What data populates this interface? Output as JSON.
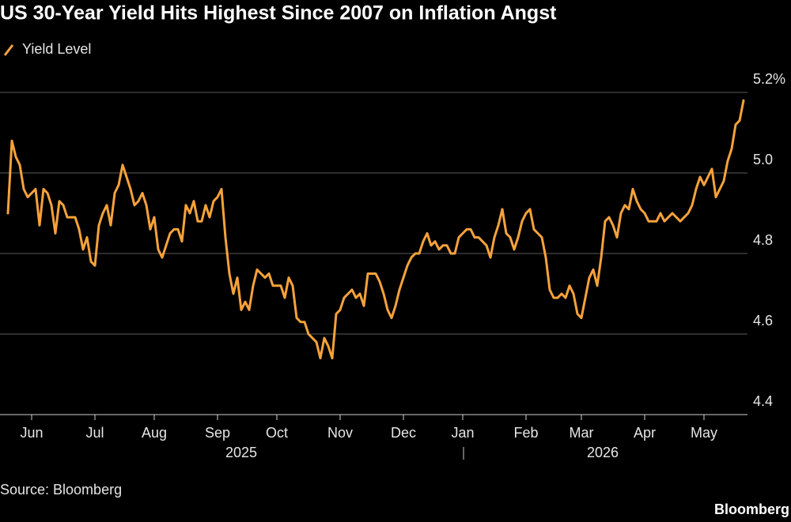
{
  "chart_data": {
    "type": "line",
    "title": "US 30-Year Yield Hits Highest Since 2007 on Inflation Angst",
    "categories": [
      null,
      null,
      null,
      null,
      null,
      null,
      "Jun",
      null,
      null,
      null,
      null,
      null,
      null,
      null,
      null,
      null,
      null,
      null,
      null,
      null,
      null,
      null,
      "Jul",
      null,
      null,
      null,
      null,
      null,
      null,
      null,
      null,
      null,
      null,
      null,
      null,
      null,
      null,
      "Aug",
      null,
      null,
      null,
      null,
      null,
      null,
      null,
      null,
      null,
      null,
      null,
      null,
      null,
      null,
      null,
      "Sep",
      null,
      null,
      null,
      null,
      null,
      null,
      null,
      null,
      null,
      null,
      null,
      null,
      null,
      null,
      "Oct",
      null,
      null,
      null,
      null,
      null,
      null,
      null,
      null,
      null,
      null,
      null,
      null,
      null,
      null,
      null,
      "Nov",
      null,
      null,
      null,
      null,
      null,
      null,
      null,
      null,
      null,
      null,
      null,
      null,
      null,
      null,
      null,
      "Dec",
      null,
      null,
      null,
      null,
      null,
      null,
      null,
      null,
      null,
      null,
      null,
      null,
      null,
      null,
      "Jan",
      null,
      null,
      null,
      null,
      null,
      null,
      null,
      null,
      null,
      null,
      null,
      null,
      null,
      null,
      null,
      "Feb",
      null,
      null,
      null,
      null,
      null,
      null,
      null,
      null,
      null,
      null,
      null,
      null,
      null,
      "Mar",
      null,
      null,
      null,
      null,
      null,
      null,
      null,
      null,
      null,
      null,
      null,
      null,
      null,
      null,
      null,
      "Apr",
      null,
      null,
      null,
      null,
      null,
      null,
      null,
      null,
      null,
      null,
      null,
      null,
      null,
      null,
      "May",
      null,
      null,
      null,
      null,
      null,
      null,
      null,
      null,
      null,
      null
    ],
    "series": [
      {
        "name": "Yield Level",
        "color": "#f7a23b",
        "values": [
          4.9,
          5.08,
          5.04,
          5.02,
          4.96,
          4.94,
          4.95,
          4.96,
          4.87,
          4.96,
          4.95,
          4.92,
          4.85,
          4.93,
          4.92,
          4.89,
          4.89,
          4.89,
          4.86,
          4.81,
          4.84,
          4.78,
          4.77,
          4.87,
          4.9,
          4.92,
          4.87,
          4.95,
          4.97,
          5.02,
          4.99,
          4.96,
          4.92,
          4.93,
          4.95,
          4.92,
          4.86,
          4.89,
          4.81,
          4.79,
          4.82,
          4.85,
          4.86,
          4.86,
          4.83,
          4.92,
          4.9,
          4.93,
          4.88,
          4.88,
          4.92,
          4.89,
          4.93,
          4.94,
          4.96,
          4.84,
          4.75,
          4.7,
          4.74,
          4.66,
          4.68,
          4.66,
          4.72,
          4.76,
          4.75,
          4.74,
          4.75,
          4.72,
          4.72,
          4.72,
          4.69,
          4.74,
          4.72,
          4.64,
          4.63,
          4.63,
          4.6,
          4.59,
          4.58,
          4.54,
          4.59,
          4.57,
          4.54,
          4.65,
          4.66,
          4.69,
          4.7,
          4.71,
          4.69,
          4.7,
          4.67,
          4.75,
          4.75,
          4.75,
          4.73,
          4.7,
          4.66,
          4.64,
          4.67,
          4.71,
          4.74,
          4.77,
          4.79,
          4.8,
          4.8,
          4.83,
          4.85,
          4.82,
          4.83,
          4.81,
          4.82,
          4.82,
          4.8,
          4.8,
          4.84,
          4.85,
          4.86,
          4.86,
          4.84,
          4.84,
          4.83,
          4.82,
          4.79,
          4.84,
          4.87,
          4.91,
          4.85,
          4.84,
          4.81,
          4.84,
          4.88,
          4.9,
          4.91,
          4.86,
          4.85,
          4.84,
          4.79,
          4.71,
          4.69,
          4.69,
          4.7,
          4.69,
          4.72,
          4.7,
          4.65,
          4.64,
          4.69,
          4.74,
          4.76,
          4.72,
          4.79,
          4.88,
          4.89,
          4.87,
          4.84,
          4.9,
          4.92,
          4.91,
          4.96,
          4.93,
          4.91,
          4.9,
          4.88,
          4.88,
          4.88,
          4.9,
          4.88,
          4.89,
          4.9,
          4.89,
          4.88,
          4.89,
          4.9,
          4.92,
          4.96,
          4.99,
          4.97,
          4.99,
          5.01,
          4.94,
          4.96,
          4.98,
          5.03,
          5.06,
          5.12,
          5.13,
          5.18
        ]
      }
    ],
    "ylim": [
      4.4,
      5.2
    ],
    "yticks": [
      {
        "value": 5.2,
        "label": "5.2%"
      },
      {
        "value": 5,
        "label": "5.0"
      },
      {
        "value": 4.8,
        "label": "4.8"
      },
      {
        "value": 4.6,
        "label": "4.6"
      },
      {
        "value": 4.4,
        "label": "4.4"
      }
    ],
    "years": [
      "2025",
      "2026"
    ],
    "grid": true,
    "source": "Source: Bloomberg",
    "credit": "Bloomberg"
  }
}
